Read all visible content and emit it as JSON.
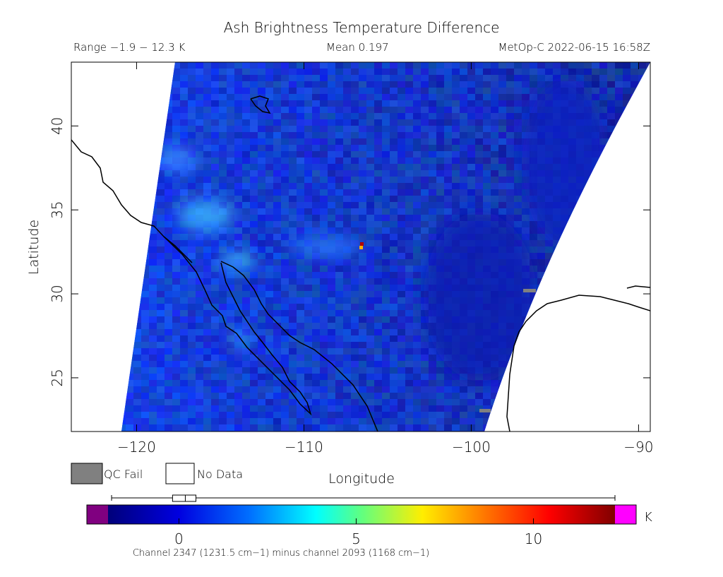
{
  "title": "Ash Brightness Temperature Difference",
  "range": "Range −1.9 − 12.3 K",
  "mean": "Mean 0.197",
  "source": "MetOp-C 2022-06-15 16:58Z",
  "x_axis": {
    "label": "Longitude",
    "lim": [
      -123.9,
      -89.3
    ],
    "ticks": [
      {
        "value": -120,
        "label": "−120"
      },
      {
        "value": -110,
        "label": "−110"
      },
      {
        "value": -100,
        "label": "−100"
      },
      {
        "value": -90,
        "label": "−90"
      }
    ]
  },
  "y_axis": {
    "label": "Latitude",
    "lim": [
      21.8,
      43.8
    ],
    "ticks": [
      25,
      30,
      35,
      40
    ]
  },
  "legend": [
    {
      "label": "QC Fail",
      "color": "#808080"
    },
    {
      "label": "No Data",
      "color": "#ffffff"
    }
  ],
  "colorbar": {
    "unit": "K",
    "lim": [
      -2,
      12.3
    ],
    "ticks": [
      0,
      5,
      10
    ],
    "caption": "Channel 2347 (1231.5 cm−1) minus channel 2093 (1168 cm−1)",
    "box": {
      "min": -1.9,
      "q1": -0.18,
      "median": 0.18,
      "q3": 0.48,
      "max": 12.3
    }
  }
}
